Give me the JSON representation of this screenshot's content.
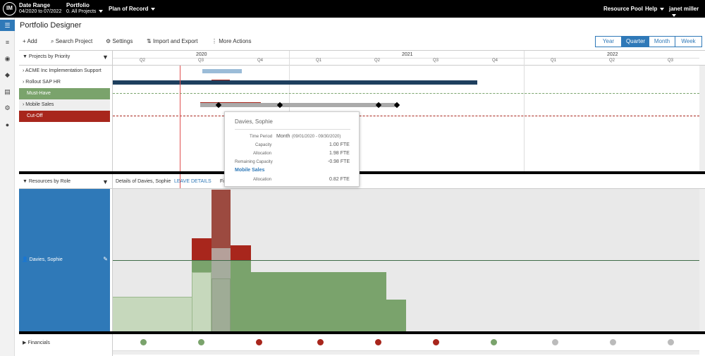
{
  "topbar": {
    "logo": "IM",
    "date_range_label": "Date Range",
    "date_range_value": "04/2020 to 07/2022",
    "portfolio_label": "Portfolio",
    "portfolio_value": "0. All Projects",
    "plan_label": "Plan of Record",
    "resource_pool": "Resource Pool",
    "help": "Help",
    "user": "janet miller"
  },
  "page_title": "Portfolio Designer",
  "toolbar": {
    "add": "Add",
    "search": "Search Project",
    "settings": "Settings",
    "import": "Import and Export",
    "more": "More Actions"
  },
  "view_toggle": [
    "Year",
    "Quarter",
    "Month",
    "Week"
  ],
  "view_selected": "Quarter",
  "projects_header": "Projects by Priority",
  "timeline": {
    "years": [
      "2020",
      "2021",
      "2022"
    ],
    "quarters": [
      "Q2",
      "Q3",
      "Q4",
      "Q1",
      "Q2",
      "Q3",
      "Q4",
      "Q1",
      "Q2",
      "Q3"
    ]
  },
  "projects": [
    {
      "name": "ACME Inc Implementation Support",
      "type": "project"
    },
    {
      "name": "Rollout SAP HR",
      "type": "project"
    },
    {
      "name": "Must-Have",
      "type": "green-marker"
    },
    {
      "name": "Mobile Sales",
      "type": "project"
    },
    {
      "name": "Cut-Off",
      "type": "red-marker"
    }
  ],
  "resources_header": "Resources by Role",
  "details_label": "Details of Davies, Sophie",
  "leave_details": "LEAVE DETAILS",
  "details_extra": "Fi",
  "resource_name": "Davies, Sophie",
  "tooltip": {
    "name": "Davies, Sophie",
    "time_period_label": "Time Period",
    "time_period_value": "Month",
    "time_period_range": "(09/01/2020 - 09/30/2020)",
    "capacity_label": "Capacity",
    "capacity_value": "1.00 FTE",
    "allocation_label": "Allocation",
    "allocation_value": "1.98 FTE",
    "remaining_label": "Remaining Capacity",
    "remaining_value": "-0.98 FTE",
    "project": "Mobile Sales",
    "project_alloc_label": "Allocation",
    "project_alloc_value": "0.82 FTE"
  },
  "financials_label": "Financials",
  "financial_dots": [
    "green",
    "green",
    "red",
    "red",
    "red",
    "red",
    "green",
    "gray",
    "gray",
    "gray"
  ],
  "colors": {
    "accent": "#2f79b8",
    "green": "#7aa36c",
    "red": "#a8261c",
    "navy": "#1e3f5e"
  }
}
